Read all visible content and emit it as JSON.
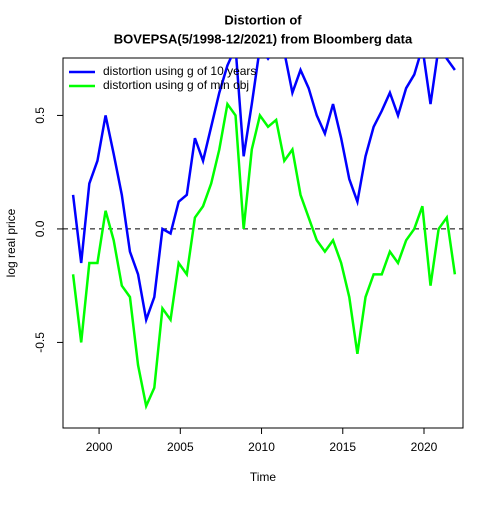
{
  "chart_data": {
    "type": "line",
    "title": [
      "Distortion of",
      "BOVEPSA(5/1998-12/2021) from Bloomberg data"
    ],
    "xlabel": "Time",
    "ylabel": "log real price",
    "x": [
      1998.4,
      1998.9,
      1999.4,
      1999.9,
      2000.4,
      2000.9,
      2001.4,
      2001.9,
      2002.4,
      2002.9,
      2003.4,
      2003.9,
      2004.4,
      2004.9,
      2005.4,
      2005.9,
      2006.4,
      2006.9,
      2007.4,
      2007.9,
      2008.4,
      2008.9,
      2009.4,
      2009.9,
      2010.4,
      2010.9,
      2011.4,
      2011.9,
      2012.4,
      2012.9,
      2013.4,
      2013.9,
      2014.4,
      2014.9,
      2015.4,
      2015.9,
      2016.4,
      2016.9,
      2017.4,
      2017.9,
      2018.4,
      2018.9,
      2019.4,
      2019.9,
      2020.4,
      2020.9,
      2021.4,
      2021.9
    ],
    "series": [
      {
        "name": "distortion using g of 10 years",
        "color": "#0000ff",
        "values": [
          0.15,
          -0.15,
          0.2,
          0.3,
          0.5,
          0.33,
          0.15,
          -0.1,
          -0.2,
          -0.4,
          -0.3,
          0,
          -0.02,
          0.12,
          0.15,
          0.4,
          0.3,
          0.45,
          0.6,
          0.72,
          0.8,
          0.32,
          0.55,
          0.8,
          0.75,
          0.8,
          0.78,
          0.6,
          0.7,
          0.62,
          0.5,
          0.42,
          0.55,
          0.4,
          0.22,
          0.12,
          0.32,
          0.45,
          0.52,
          0.6,
          0.5,
          0.62,
          0.68,
          0.8,
          0.55,
          0.8,
          0.75,
          0.7
        ]
      },
      {
        "name": "distortion using g of min obj",
        "color": "#00ff00",
        "values": [
          -0.2,
          -0.5,
          -0.15,
          -0.15,
          0.08,
          -0.05,
          -0.25,
          -0.3,
          -0.6,
          -0.78,
          -0.7,
          -0.35,
          -0.4,
          -0.15,
          -0.2,
          0.05,
          0.1,
          0.2,
          0.35,
          0.55,
          0.5,
          0,
          0.35,
          0.5,
          0.45,
          0.48,
          0.3,
          0.35,
          0.15,
          0.05,
          -0.05,
          -0.1,
          -0.05,
          -0.15,
          -0.3,
          -0.55,
          -0.3,
          -0.2,
          -0.2,
          -0.1,
          -0.15,
          -0.05,
          0,
          0.1,
          -0.25,
          0,
          0.05,
          -0.2
        ]
      }
    ],
    "xlim": [
      1997.78,
      2022.4
    ],
    "xticks": [
      2000,
      2005,
      2010,
      2015,
      2020
    ],
    "ylim": [
      -0.877,
      0.753
    ],
    "yticks": [
      -0.5,
      {
        "value": 0,
        "label": "0.0"
      },
      0.5
    ],
    "hline": 0,
    "legend": "top-left"
  }
}
